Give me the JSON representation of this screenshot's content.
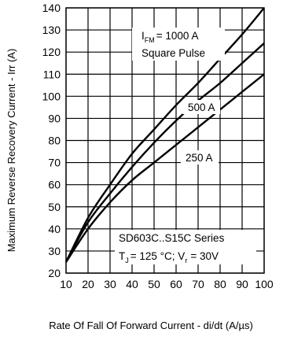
{
  "chart_data": {
    "type": "line",
    "xlabel": "Rate Of Fall Of Forward Current - di/dt (A/µs)",
    "ylabel": "Maximum Reverse Recovery Current - Irr (A)",
    "xlim": [
      10,
      100
    ],
    "ylim": [
      20,
      140
    ],
    "x_ticks": [
      "10",
      "20",
      "30",
      "40",
      "50",
      "60",
      "70",
      "80",
      "90",
      "100"
    ],
    "y_ticks": [
      "20",
      "30",
      "40",
      "50",
      "60",
      "70",
      "80",
      "90",
      "100",
      "110",
      "120",
      "130",
      "140"
    ],
    "grid": true,
    "series": [
      {
        "name": "I_FM = 1000 A",
        "x": [
          10,
          20,
          30,
          40,
          50,
          60,
          70,
          80,
          90,
          100
        ],
        "y": [
          25,
          45,
          60,
          74,
          85,
          96,
          106,
          117,
          128,
          140
        ]
      },
      {
        "name": "500 A",
        "x": [
          10,
          20,
          30,
          40,
          50,
          60,
          70,
          80,
          90,
          100
        ],
        "y": [
          25,
          43,
          56,
          68,
          79,
          89,
          98,
          106,
          115,
          124
        ]
      },
      {
        "name": "250 A",
        "x": [
          10,
          20,
          30,
          40,
          50,
          60,
          70,
          80,
          90,
          100
        ],
        "y": [
          25,
          40,
          52,
          62,
          70,
          78,
          86,
          94,
          102,
          110
        ]
      }
    ],
    "annotations": {
      "ifm_main": "I",
      "ifm_sub": "FM",
      "ifm_value": "= 1000 A",
      "pulse": "Square Pulse",
      "label_500": "500 A",
      "label_250": "250 A",
      "series_title": "SD603C..S15C Series",
      "cond_tj_main": "T",
      "cond_tj_sub": "J",
      "cond_tj_value": "= 125 °C; V",
      "cond_vr_sub": "r",
      "cond_vr_value": "= 30V"
    }
  }
}
